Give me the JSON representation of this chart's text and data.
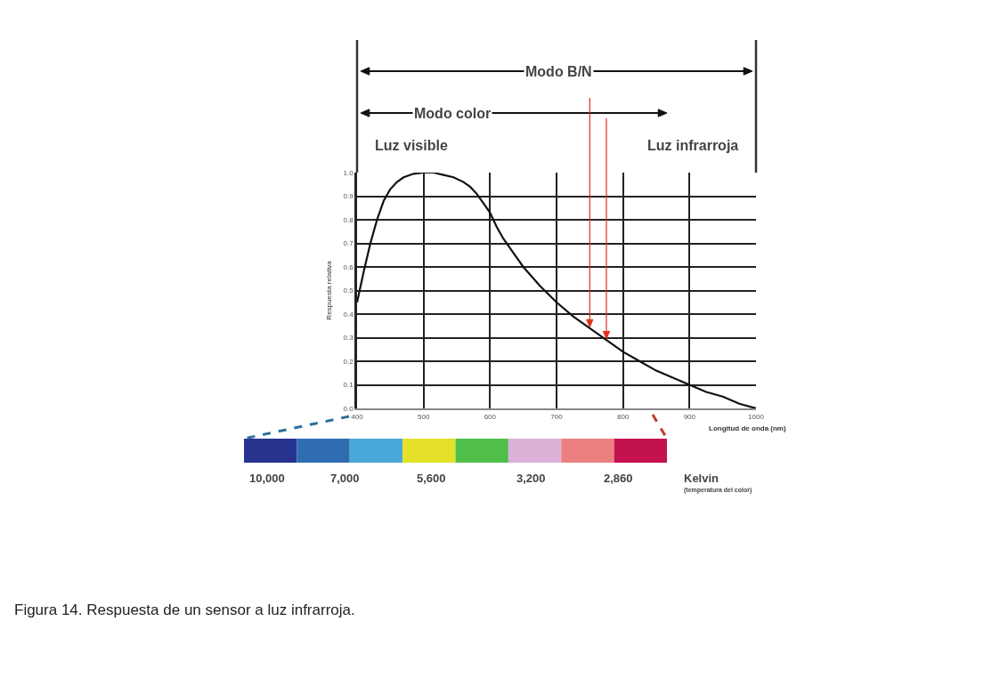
{
  "chart_data": {
    "type": "line",
    "xlabel": "Longitud de onda (nm)",
    "ylabel": "Respuesta relativa",
    "series": [
      {
        "color": "#111111",
        "x": [
          400,
          410,
          420,
          430,
          440,
          450,
          460,
          470,
          485,
          500,
          515,
          530,
          545,
          560,
          570,
          580,
          590,
          600,
          610,
          620,
          635,
          650,
          675,
          700,
          725,
          750,
          775,
          800,
          825,
          850,
          875,
          900,
          925,
          950,
          975,
          1000
        ],
        "values": [
          0.45,
          0.58,
          0.7,
          0.8,
          0.88,
          0.93,
          0.96,
          0.98,
          0.995,
          1.0,
          1.0,
          0.99,
          0.98,
          0.96,
          0.94,
          0.91,
          0.87,
          0.83,
          0.77,
          0.72,
          0.66,
          0.6,
          0.52,
          0.45,
          0.39,
          0.34,
          0.29,
          0.24,
          0.2,
          0.16,
          0.13,
          0.1,
          0.07,
          0.05,
          0.02,
          0.0
        ]
      }
    ],
    "xlim": [
      400,
      1000
    ],
    "ylim": [
      0,
      1
    ],
    "xticks": [
      400,
      500,
      600,
      700,
      800,
      900,
      1000
    ],
    "yticks": [
      {
        "value": 0,
        "label": "0.0"
      },
      0.1,
      0.2,
      0.3,
      0.4,
      0.5,
      0.6,
      0.7,
      0.8,
      0.9,
      {
        "value": 1,
        "label": "1.0"
      }
    ],
    "grid": true,
    "marker": "none",
    "line_style": "solid",
    "ref_lines": [
      {
        "axis": "x",
        "value": 750,
        "color": "#e0301e"
      },
      {
        "axis": "x",
        "value": 775,
        "color": "#e0301e"
      }
    ],
    "annotations": [
      "Modo B/N",
      "Modo color",
      "Luz visible",
      "Luz infrarroja",
      "10,000",
      "7,000",
      "5,600",
      "3,200",
      "2,860",
      "Kelvin",
      "(temperatura del color)",
      "Figura 14. Respuesta de un sensor a luz infrarroja."
    ]
  }
}
